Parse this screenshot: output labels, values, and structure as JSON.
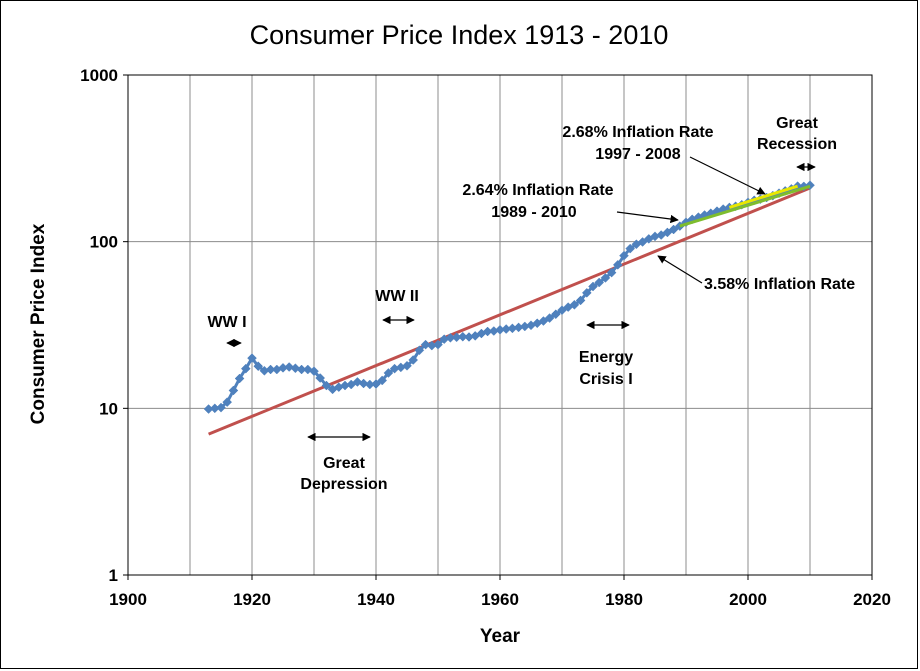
{
  "chart_data": {
    "type": "line",
    "title": "Consumer Price Index 1913 - 2010",
    "xlabel": "Year",
    "ylabel": "Consumer Price Index",
    "xlim": [
      1900,
      2020
    ],
    "ylim": [
      1,
      1000
    ],
    "yscale": "log",
    "x_ticks": [
      "1900",
      "1920",
      "1940",
      "1960",
      "1980",
      "2000",
      "2020"
    ],
    "y_ticks": [
      "1",
      "10",
      "100",
      "1000"
    ],
    "grid": true,
    "series": [
      {
        "name": "CPI",
        "color": "#4F81BD",
        "marker": "diamond",
        "x": [
          1913,
          1914,
          1915,
          1916,
          1917,
          1918,
          1919,
          1920,
          1921,
          1922,
          1923,
          1924,
          1925,
          1926,
          1927,
          1928,
          1929,
          1930,
          1931,
          1932,
          1933,
          1934,
          1935,
          1936,
          1937,
          1938,
          1939,
          1940,
          1941,
          1942,
          1943,
          1944,
          1945,
          1946,
          1947,
          1948,
          1949,
          1950,
          1951,
          1952,
          1953,
          1954,
          1955,
          1956,
          1957,
          1958,
          1959,
          1960,
          1961,
          1962,
          1963,
          1964,
          1965,
          1966,
          1967,
          1968,
          1969,
          1970,
          1971,
          1972,
          1973,
          1974,
          1975,
          1976,
          1977,
          1978,
          1979,
          1980,
          1981,
          1982,
          1983,
          1984,
          1985,
          1986,
          1987,
          1988,
          1989,
          1990,
          1991,
          1992,
          1993,
          1994,
          1995,
          1996,
          1997,
          1998,
          1999,
          2000,
          2001,
          2002,
          2003,
          2004,
          2005,
          2006,
          2007,
          2008,
          2009,
          2010
        ],
        "values": [
          9.9,
          10.0,
          10.1,
          10.9,
          12.8,
          15.1,
          17.3,
          20.0,
          17.9,
          16.8,
          17.1,
          17.1,
          17.5,
          17.7,
          17.4,
          17.1,
          17.1,
          16.7,
          15.2,
          13.7,
          13.0,
          13.4,
          13.7,
          13.9,
          14.4,
          14.1,
          13.9,
          14.0,
          14.7,
          16.3,
          17.3,
          17.6,
          18.0,
          19.5,
          22.3,
          24.1,
          23.8,
          24.1,
          26.0,
          26.5,
          26.7,
          26.9,
          26.8,
          27.2,
          28.1,
          28.9,
          29.1,
          29.6,
          29.9,
          30.2,
          30.6,
          31.0,
          31.5,
          32.4,
          33.4,
          34.8,
          36.7,
          38.8,
          40.5,
          41.8,
          44.4,
          49.3,
          53.8,
          56.9,
          60.6,
          65.2,
          72.6,
          82.4,
          90.9,
          96.5,
          99.6,
          103.9,
          107.6,
          109.6,
          113.6,
          118.3,
          124.0,
          130.7,
          136.2,
          140.3,
          144.5,
          148.2,
          152.4,
          156.9,
          160.5,
          163.0,
          166.6,
          172.2,
          177.1,
          179.9,
          184.0,
          188.9,
          195.3,
          201.6,
          207.3,
          215.3,
          214.5,
          218.1
        ]
      },
      {
        "name": "3.58% Inflation Rate",
        "color": "#C0504D",
        "x": [
          1913,
          2010
        ],
        "values": [
          7.0,
          210.0
        ]
      },
      {
        "name": "2.64% Inflation Rate 1989 - 2010",
        "color": "#7EBD2E",
        "x": [
          1989,
          2010
        ],
        "values": [
          124.0,
          215.0
        ]
      },
      {
        "name": "2.68% Inflation Rate 1997 - 2008",
        "color": "#E8E800",
        "x": [
          1997,
          2008
        ],
        "values": [
          160.5,
          215.3
        ]
      }
    ],
    "annotations": {
      "ww1": "WW I",
      "ww2": "WW II",
      "great_depression_line1": "Great",
      "great_depression_line2": "Depression",
      "energy_crisis_line1": "Energy",
      "energy_crisis_line2": "Crisis I",
      "rate_358": "3.58% Inflation Rate",
      "rate_264_line1": "2.64% Inflation Rate",
      "rate_264_line2": "1989  - 2010",
      "rate_268_line1": "2.68% Inflation Rate",
      "rate_268_line2": "1997  - 2008",
      "great_recession_line1": "Great",
      "great_recession_line2": "Recession"
    }
  }
}
